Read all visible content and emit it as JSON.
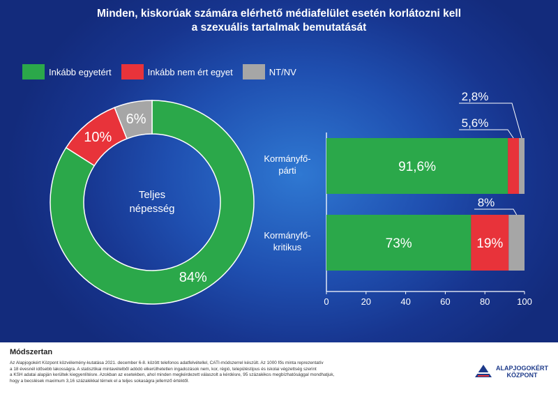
{
  "title_line1": "Minden, kiskorúak számára elérhető médiafelület esetén korlátozni kell",
  "title_line2": "a szexuális tartalmak bemutatását",
  "legend": [
    {
      "label": "Inkább egyetért",
      "color": "#2ba84a"
    },
    {
      "label": "Inkább nem ért egyet",
      "color": "#e8333a"
    },
    {
      "label": "NT/NV",
      "color": "#a6a6a6"
    }
  ],
  "chart_data": [
    {
      "type": "pie",
      "center_label": [
        "Teljes",
        "népesség"
      ],
      "slices": [
        {
          "name": "Inkább egyetért",
          "value": 84,
          "label": "84%",
          "color": "#2ba84a"
        },
        {
          "name": "Inkább nem ért egyet",
          "value": 10,
          "label": "10%",
          "color": "#e8333a"
        },
        {
          "name": "NT/NV",
          "value": 6,
          "label": "6%",
          "color": "#a6a6a6"
        }
      ]
    },
    {
      "type": "bar",
      "orientation": "horizontal",
      "stacked": true,
      "categories": [
        [
          "Kormányfő-",
          "párti"
        ],
        [
          "Kormányfő-",
          "kritikus"
        ]
      ],
      "series": [
        {
          "name": "Inkább egyetért",
          "color": "#2ba84a",
          "values": [
            91.6,
            73
          ],
          "labels": [
            "91,6%",
            "73%"
          ]
        },
        {
          "name": "Inkább nem ért egyet",
          "color": "#e8333a",
          "values": [
            5.6,
            19
          ],
          "labels": [
            "5,6%",
            "19%"
          ]
        },
        {
          "name": "NT/NV",
          "color": "#a6a6a6",
          "values": [
            2.8,
            8
          ],
          "labels": [
            "2,8%",
            "8%"
          ]
        }
      ],
      "xlim": [
        0,
        100
      ],
      "xticks": [
        "0",
        "20",
        "40",
        "60",
        "80",
        "100"
      ]
    }
  ],
  "footer": {
    "methodology_title": "Módszertan",
    "methodology_lines": [
      "Az Alapjogokért Központ közvélemény-kutatása 2021. december 6-8. között telefonos adatfelvétellel, CATI-módszerrel készült. Az 1000 fős minta reprezentatív",
      "a 18 évesnél idősebb lakosságra. A statisztikai mintavételből adódó elkerülhetetlen ingadozások nem, kor, régió, településtípus és iskolai végzettség szerint",
      "a KSH adatai alapján kerültek kiegyenlítésre. Azokban az esetekben, ahol minden megkérdezett válaszolt a kérdésre, 95 százalékos megbízhatósággal mondhatjuk,",
      "hogy a becslések maximum 3,16 százalékkal térnek el a teljes sokaságra jellemző értéktől."
    ],
    "logo_line1": "ALAPJOGOKÉRT",
    "logo_line2": "KÖZPONT"
  }
}
